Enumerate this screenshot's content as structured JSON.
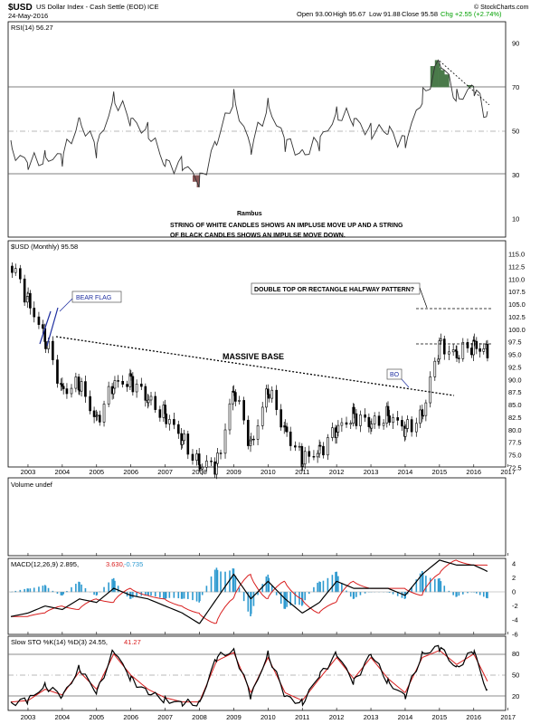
{
  "header": {
    "symbol": "$USD",
    "name": "US Dollar Index - Cash Settle (EOD)",
    "exchange": "ICE",
    "date": "24-May-2016",
    "open": "Open 93.00",
    "high": "High 95.67",
    "low": "Low 91.88",
    "close": "Close 95.58",
    "change": "Chg +2.55 (+2.74%)",
    "credit": "© StockCharts.com"
  },
  "colors": {
    "rsi_overbought_fill": "#4a7a4a",
    "rsi_oversold_fill": "#8a5656",
    "histogram": "#2e9ad0",
    "macd_signal": "#d81e1e",
    "sto_d": "#d81e1e",
    "change_positive": "#00a000",
    "annotation_box": "#1f2fa0"
  },
  "rsi": {
    "legend": "RSI(14) 56.27",
    "ticks": [
      "90",
      "70",
      "50",
      "30",
      "10"
    ],
    "author": "Rambus",
    "note_line1": "STRING OF WHITE CANDLES SHOWS AN IMPLUSE MOVE UP AND A STRING",
    "note_line2": "OF BLACK CANDLES SHOWS AN IMPULSE MOVE DOWN."
  },
  "price": {
    "legend": "$USD (Monthly) 95.58",
    "ticks": [
      "115.0",
      "112.5",
      "110.0",
      "107.5",
      "105.0",
      "102.5",
      "100.0",
      "97.5",
      "95.0",
      "92.5",
      "90.0",
      "87.5",
      "85.0",
      "82.5",
      "80.0",
      "77.5",
      "75.0",
      "72.5"
    ],
    "bear_flag": "BEAR FLAG",
    "double_top": "DOUBLE TOP OR RECTANGLE HALFWAY PATTERN?",
    "massive_base": "MASSIVE BASE",
    "bo": "BO"
  },
  "volume": {
    "legend": "Volume undef"
  },
  "macd": {
    "legend_prefix": "MACD(12,26,9) 2.895,",
    "legend_signal": "3.630,",
    "legend_hist": "-0.735",
    "ticks": [
      "4",
      "2",
      "0",
      "-2",
      "-4",
      "-6"
    ]
  },
  "sto": {
    "legend_prefix": "Slow STO %K(14) %D(3) 24.55,",
    "legend_d": "41.27",
    "ticks": [
      "80",
      "50",
      "20"
    ]
  },
  "x_axis": {
    "years": [
      "2003",
      "2004",
      "2005",
      "2006",
      "2007",
      "2008",
      "2009",
      "2010",
      "2011",
      "2012",
      "2013",
      "2014",
      "2015",
      "2016",
      "2017"
    ]
  },
  "chart_data": {
    "type": "line",
    "title": "$USD US Dollar Index - Cash Settle (EOD) ICE",
    "panels": [
      "RSI(14)",
      "$USD (Monthly) candlesticks",
      "Volume",
      "MACD(12,26,9)",
      "Slow STO %K(14) %D(3)"
    ],
    "x": [
      2002.5,
      2003,
      2003.5,
      2004,
      2004.5,
      2005,
      2005.5,
      2006,
      2006.5,
      2007,
      2007.5,
      2008,
      2008.5,
      2009,
      2009.5,
      2010,
      2010.5,
      2011,
      2011.5,
      2012,
      2012.5,
      2013,
      2013.5,
      2014,
      2014.5,
      2015,
      2015.5,
      2016,
      2016.4
    ],
    "series": [
      {
        "name": "$USD",
        "values": [
          113,
          106,
          98,
          88,
          89,
          82,
          89,
          90,
          86,
          83,
          78,
          73,
          73,
          88,
          77,
          88,
          80,
          74,
          76,
          80,
          83,
          81,
          83,
          80,
          83,
          97,
          95,
          97,
          95.58
        ]
      },
      {
        "name": "RSI(14)",
        "values": [
          42,
          35,
          38,
          38,
          55,
          42,
          65,
          55,
          50,
          35,
          35,
          27,
          45,
          65,
          42,
          62,
          45,
          40,
          45,
          58,
          55,
          50,
          50,
          45,
          65,
          82,
          65,
          70,
          56.27
        ]
      },
      {
        "name": "MACD(12,26,9)",
        "values": [
          -3.5,
          -3,
          -2,
          -2.5,
          -1,
          -1.5,
          0.5,
          -0.5,
          -1,
          -2,
          -3,
          -4.5,
          -1,
          2.5,
          -1,
          1.5,
          -1,
          -3,
          -1.5,
          1.5,
          0.5,
          0.5,
          0.5,
          -0.5,
          2.5,
          4.5,
          3.8,
          3.8,
          2.9
        ]
      },
      {
        "name": "%K(14)",
        "values": [
          10,
          15,
          35,
          20,
          60,
          25,
          85,
          45,
          25,
          15,
          10,
          10,
          75,
          85,
          20,
          80,
          20,
          10,
          50,
          80,
          40,
          80,
          40,
          20,
          80,
          90,
          60,
          85,
          24.55
        ]
      },
      {
        "name": "%D(3)",
        "values": [
          12,
          14,
          30,
          22,
          55,
          30,
          80,
          50,
          30,
          18,
          12,
          12,
          70,
          82,
          25,
          75,
          25,
          14,
          45,
          75,
          45,
          75,
          45,
          25,
          75,
          85,
          65,
          80,
          41.27
        ]
      }
    ],
    "xlabel": "",
    "ylabel": "",
    "rsi_ylim": [
      0,
      100
    ],
    "price_ylim": [
      71,
      116
    ],
    "macd_ylim": [
      -7,
      5
    ],
    "sto_ylim": [
      0,
      100
    ],
    "grid": false,
    "last_close": 95.58
  }
}
